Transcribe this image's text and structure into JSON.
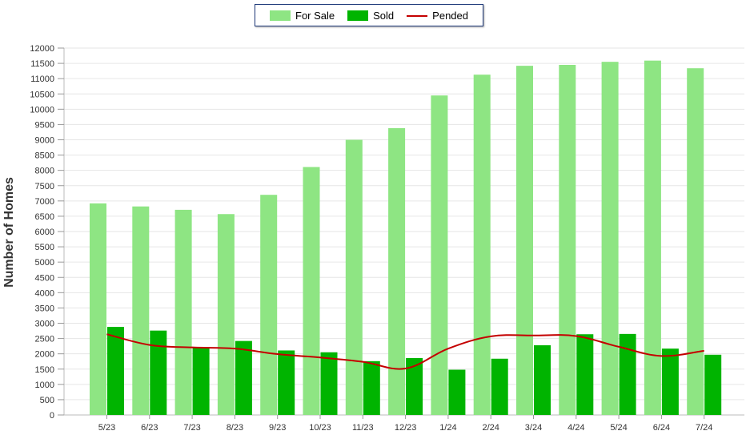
{
  "chart_data": {
    "type": "bar",
    "ylabel": "Number of Homes",
    "ylim": [
      0,
      12000
    ],
    "yticks": [
      0,
      500,
      1000,
      1500,
      2000,
      2500,
      3000,
      3500,
      4000,
      4500,
      5000,
      5500,
      6000,
      6500,
      7000,
      7500,
      8000,
      8500,
      9000,
      9500,
      10000,
      10500,
      11000,
      11500,
      12000
    ],
    "grid": true,
    "legend_position": "top-center",
    "categories": [
      "5/23",
      "6/23",
      "7/23",
      "8/23",
      "9/23",
      "10/23",
      "11/23",
      "12/23",
      "1/24",
      "2/24",
      "3/24",
      "4/24",
      "5/24",
      "6/24",
      "7/24"
    ],
    "series": [
      {
        "name": "For Sale",
        "kind": "bar",
        "color": "#8ee583",
        "values": [
          6920,
          6820,
          6710,
          6570,
          7200,
          8110,
          9000,
          9380,
          10450,
          11130,
          11420,
          11450,
          11550,
          11590,
          11340
        ]
      },
      {
        "name": "Sold",
        "kind": "bar",
        "color": "#00b400",
        "values": [
          2880,
          2760,
          2190,
          2420,
          2110,
          2050,
          1760,
          1860,
          1480,
          1840,
          2280,
          2640,
          2650,
          2170,
          1970
        ]
      },
      {
        "name": "Pended",
        "kind": "line",
        "color": "#c40000",
        "values": [
          2640,
          2290,
          2210,
          2170,
          1990,
          1880,
          1740,
          1520,
          2170,
          2570,
          2600,
          2580,
          2230,
          1930,
          2100
        ]
      }
    ]
  },
  "legend": {
    "for_sale": "For Sale",
    "sold": "Sold",
    "pended": "Pended"
  }
}
